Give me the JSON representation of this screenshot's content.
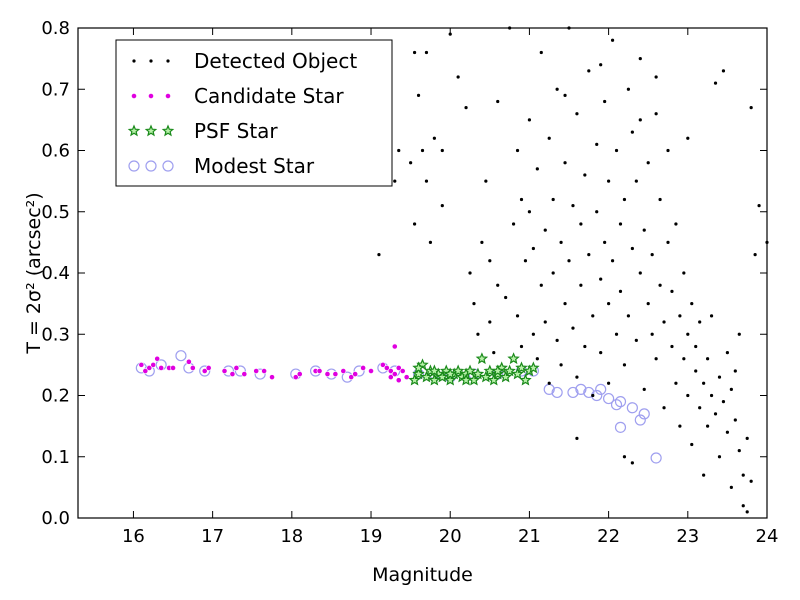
{
  "chart_data": {
    "type": "scatter",
    "xlabel": "Magnitude",
    "ylabel": "T = 2σ² (arcsec²)",
    "xlim": [
      15.3,
      24.0
    ],
    "ylim": [
      0.0,
      0.8
    ],
    "x_ticks": [
      16,
      17,
      18,
      19,
      20,
      21,
      22,
      23,
      24
    ],
    "y_ticks": [
      0.0,
      0.1,
      0.2,
      0.3,
      0.4,
      0.5,
      0.6,
      0.7,
      0.8
    ],
    "x_tick_labels": [
      "16",
      "17",
      "18",
      "19",
      "20",
      "21",
      "22",
      "23",
      "24"
    ],
    "y_tick_labels": [
      "0.0",
      "0.1",
      "0.2",
      "0.3",
      "0.4",
      "0.5",
      "0.6",
      "0.7",
      "0.8"
    ],
    "legend_placement": "top-left",
    "grid": false,
    "series": [
      {
        "name": "Detected Object",
        "marker": "dot",
        "color": "#000000",
        "points": [
          [
            19.1,
            0.43
          ],
          [
            19.3,
            0.55
          ],
          [
            19.35,
            0.6
          ],
          [
            19.5,
            0.58
          ],
          [
            19.55,
            0.48
          ],
          [
            19.65,
            0.6
          ],
          [
            19.7,
            0.55
          ],
          [
            19.75,
            0.45
          ],
          [
            19.8,
            0.62
          ],
          [
            19.9,
            0.51
          ],
          [
            19.55,
            0.76
          ],
          [
            19.6,
            0.69
          ],
          [
            19.7,
            0.76
          ],
          [
            20.0,
            0.79
          ],
          [
            19.9,
            0.6
          ],
          [
            20.1,
            0.72
          ],
          [
            20.2,
            0.67
          ],
          [
            20.25,
            0.4
          ],
          [
            20.3,
            0.35
          ],
          [
            20.35,
            0.3
          ],
          [
            20.4,
            0.45
          ],
          [
            20.45,
            0.55
          ],
          [
            20.5,
            0.32
          ],
          [
            20.55,
            0.27
          ],
          [
            20.5,
            0.42
          ],
          [
            20.6,
            0.38
          ],
          [
            20.6,
            0.68
          ],
          [
            20.7,
            0.36
          ],
          [
            20.75,
            0.8
          ],
          [
            20.8,
            0.48
          ],
          [
            20.85,
            0.33
          ],
          [
            20.85,
            0.6
          ],
          [
            20.9,
            0.28
          ],
          [
            20.9,
            0.52
          ],
          [
            20.95,
            0.42
          ],
          [
            21.0,
            0.5
          ],
          [
            21.0,
            0.65
          ],
          [
            21.05,
            0.3
          ],
          [
            21.05,
            0.44
          ],
          [
            21.1,
            0.57
          ],
          [
            21.1,
            0.26
          ],
          [
            21.15,
            0.38
          ],
          [
            21.15,
            0.76
          ],
          [
            21.2,
            0.47
          ],
          [
            21.2,
            0.32
          ],
          [
            21.25,
            0.62
          ],
          [
            21.25,
            0.22
          ],
          [
            21.3,
            0.52
          ],
          [
            21.3,
            0.4
          ],
          [
            21.35,
            0.29
          ],
          [
            21.35,
            0.7
          ],
          [
            21.4,
            0.45
          ],
          [
            21.4,
            0.25
          ],
          [
            21.45,
            0.58
          ],
          [
            21.45,
            0.35
          ],
          [
            21.5,
            0.8
          ],
          [
            21.5,
            0.42
          ],
          [
            21.55,
            0.31
          ],
          [
            21.55,
            0.51
          ],
          [
            21.6,
            0.23
          ],
          [
            21.6,
            0.66
          ],
          [
            21.65,
            0.38
          ],
          [
            21.65,
            0.48
          ],
          [
            21.7,
            0.28
          ],
          [
            21.7,
            0.56
          ],
          [
            21.75,
            0.43
          ],
          [
            21.75,
            0.73
          ],
          [
            21.8,
            0.33
          ],
          [
            21.8,
            0.2
          ],
          [
            21.85,
            0.5
          ],
          [
            21.85,
            0.61
          ],
          [
            21.9,
            0.39
          ],
          [
            21.9,
            0.27
          ],
          [
            21.95,
            0.45
          ],
          [
            21.95,
            0.68
          ],
          [
            22.0,
            0.35
          ],
          [
            22.0,
            0.55
          ],
          [
            22.0,
            0.22
          ],
          [
            22.05,
            0.42
          ],
          [
            22.05,
            0.78
          ],
          [
            22.1,
            0.3
          ],
          [
            22.1,
            0.6
          ],
          [
            22.15,
            0.48
          ],
          [
            22.15,
            0.37
          ],
          [
            22.2,
            0.25
          ],
          [
            22.2,
            0.52
          ],
          [
            22.25,
            0.7
          ],
          [
            22.25,
            0.33
          ],
          [
            22.3,
            0.44
          ],
          [
            22.3,
            0.63
          ],
          [
            22.35,
            0.29
          ],
          [
            22.35,
            0.55
          ],
          [
            22.4,
            0.4
          ],
          [
            22.4,
            0.75
          ],
          [
            22.45,
            0.21
          ],
          [
            22.45,
            0.47
          ],
          [
            22.5,
            0.35
          ],
          [
            22.5,
            0.58
          ],
          [
            22.55,
            0.3
          ],
          [
            22.55,
            0.43
          ],
          [
            22.6,
            0.66
          ],
          [
            22.6,
            0.26
          ],
          [
            22.65,
            0.38
          ],
          [
            22.65,
            0.52
          ],
          [
            22.7,
            0.32
          ],
          [
            22.7,
            0.18
          ],
          [
            22.75,
            0.45
          ],
          [
            22.75,
            0.6
          ],
          [
            22.8,
            0.28
          ],
          [
            22.8,
            0.37
          ],
          [
            22.85,
            0.22
          ],
          [
            22.85,
            0.48
          ],
          [
            22.9,
            0.33
          ],
          [
            22.9,
            0.15
          ],
          [
            22.95,
            0.4
          ],
          [
            22.95,
            0.26
          ],
          [
            23.0,
            0.3
          ],
          [
            23.0,
            0.2
          ],
          [
            23.05,
            0.35
          ],
          [
            23.05,
            0.12
          ],
          [
            23.1,
            0.28
          ],
          [
            23.1,
            0.24
          ],
          [
            23.15,
            0.18
          ],
          [
            23.15,
            0.32
          ],
          [
            23.2,
            0.22
          ],
          [
            23.2,
            0.07
          ],
          [
            23.25,
            0.26
          ],
          [
            23.25,
            0.15
          ],
          [
            23.3,
            0.2
          ],
          [
            23.3,
            0.33
          ],
          [
            23.35,
            0.17
          ],
          [
            23.35,
            0.71
          ],
          [
            23.4,
            0.23
          ],
          [
            23.4,
            0.1
          ],
          [
            23.45,
            0.73
          ],
          [
            23.45,
            0.19
          ],
          [
            23.5,
            0.27
          ],
          [
            23.5,
            0.14
          ],
          [
            23.55,
            0.21
          ],
          [
            23.55,
            0.05
          ],
          [
            23.6,
            0.24
          ],
          [
            23.6,
            0.16
          ],
          [
            23.65,
            0.11
          ],
          [
            23.65,
            0.3
          ],
          [
            23.7,
            0.07
          ],
          [
            23.7,
            0.02
          ],
          [
            23.75,
            0.13
          ],
          [
            23.75,
            0.01
          ],
          [
            23.8,
            0.06
          ],
          [
            23.8,
            0.67
          ],
          [
            23.85,
            0.43
          ],
          [
            23.9,
            0.51
          ],
          [
            24.0,
            0.45
          ],
          [
            21.45,
            0.69
          ],
          [
            21.9,
            0.74
          ],
          [
            22.4,
            0.65
          ],
          [
            22.6,
            0.72
          ],
          [
            23.0,
            0.62
          ],
          [
            21.6,
            0.13
          ],
          [
            22.3,
            0.09
          ],
          [
            22.2,
            0.1
          ]
        ]
      },
      {
        "name": "Candidate Star",
        "marker": "circle-filled-small",
        "color": "#e000e0",
        "points": [
          [
            16.1,
            0.25
          ],
          [
            16.15,
            0.24
          ],
          [
            16.2,
            0.245
          ],
          [
            16.25,
            0.25
          ],
          [
            16.3,
            0.26
          ],
          [
            16.35,
            0.245
          ],
          [
            16.45,
            0.245
          ],
          [
            16.5,
            0.245
          ],
          [
            16.7,
            0.255
          ],
          [
            16.75,
            0.245
          ],
          [
            16.9,
            0.24
          ],
          [
            16.95,
            0.245
          ],
          [
            17.15,
            0.24
          ],
          [
            17.25,
            0.235
          ],
          [
            17.3,
            0.245
          ],
          [
            17.4,
            0.235
          ],
          [
            17.55,
            0.24
          ],
          [
            17.65,
            0.24
          ],
          [
            17.75,
            0.23
          ],
          [
            18.05,
            0.23
          ],
          [
            18.1,
            0.235
          ],
          [
            18.3,
            0.24
          ],
          [
            18.35,
            0.24
          ],
          [
            18.45,
            0.235
          ],
          [
            18.55,
            0.235
          ],
          [
            18.65,
            0.24
          ],
          [
            18.75,
            0.23
          ],
          [
            18.8,
            0.235
          ],
          [
            18.9,
            0.245
          ],
          [
            19.0,
            0.24
          ],
          [
            19.15,
            0.25
          ],
          [
            19.2,
            0.245
          ],
          [
            19.25,
            0.24
          ],
          [
            19.3,
            0.235
          ],
          [
            19.35,
            0.245
          ],
          [
            19.4,
            0.24
          ],
          [
            19.45,
            0.23
          ],
          [
            19.3,
            0.28
          ],
          [
            19.25,
            0.23
          ],
          [
            19.35,
            0.225
          ]
        ]
      },
      {
        "name": "PSF Star",
        "marker": "star",
        "color": "#1a8a1a",
        "points": [
          [
            19.55,
            0.225
          ],
          [
            19.6,
            0.235
          ],
          [
            19.65,
            0.25
          ],
          [
            19.7,
            0.23
          ],
          [
            19.75,
            0.24
          ],
          [
            19.8,
            0.225
          ],
          [
            19.85,
            0.235
          ],
          [
            19.9,
            0.23
          ],
          [
            19.95,
            0.24
          ],
          [
            20.0,
            0.225
          ],
          [
            20.05,
            0.235
          ],
          [
            20.1,
            0.24
          ],
          [
            20.15,
            0.23
          ],
          [
            20.2,
            0.235
          ],
          [
            20.25,
            0.24
          ],
          [
            20.3,
            0.225
          ],
          [
            20.35,
            0.235
          ],
          [
            20.4,
            0.26
          ],
          [
            20.45,
            0.23
          ],
          [
            20.5,
            0.24
          ],
          [
            20.55,
            0.225
          ],
          [
            20.6,
            0.235
          ],
          [
            20.65,
            0.245
          ],
          [
            20.7,
            0.23
          ],
          [
            20.75,
            0.24
          ],
          [
            20.8,
            0.26
          ],
          [
            20.85,
            0.235
          ],
          [
            20.9,
            0.245
          ],
          [
            20.95,
            0.225
          ],
          [
            21.0,
            0.24
          ],
          [
            21.05,
            0.245
          ],
          [
            19.6,
            0.245
          ],
          [
            19.8,
            0.24
          ],
          [
            20.0,
            0.235
          ],
          [
            20.2,
            0.225
          ],
          [
            20.6,
            0.24
          ]
        ]
      },
      {
        "name": "Modest Star",
        "marker": "circle-open",
        "color": "#9f9fef",
        "points": [
          [
            16.1,
            0.245
          ],
          [
            16.2,
            0.24
          ],
          [
            16.35,
            0.25
          ],
          [
            16.6,
            0.265
          ],
          [
            16.7,
            0.245
          ],
          [
            16.9,
            0.24
          ],
          [
            17.2,
            0.24
          ],
          [
            17.35,
            0.24
          ],
          [
            17.6,
            0.235
          ],
          [
            18.05,
            0.235
          ],
          [
            18.3,
            0.24
          ],
          [
            18.5,
            0.235
          ],
          [
            18.7,
            0.23
          ],
          [
            18.85,
            0.24
          ],
          [
            19.15,
            0.245
          ],
          [
            19.3,
            0.24
          ],
          [
            19.6,
            0.235
          ],
          [
            19.8,
            0.235
          ],
          [
            20.0,
            0.23
          ],
          [
            20.3,
            0.235
          ],
          [
            20.6,
            0.235
          ],
          [
            20.9,
            0.24
          ],
          [
            21.05,
            0.24
          ],
          [
            21.25,
            0.21
          ],
          [
            21.35,
            0.205
          ],
          [
            21.55,
            0.205
          ],
          [
            21.65,
            0.21
          ],
          [
            21.75,
            0.205
          ],
          [
            21.85,
            0.2
          ],
          [
            21.9,
            0.21
          ],
          [
            22.1,
            0.185
          ],
          [
            22.15,
            0.19
          ],
          [
            22.3,
            0.18
          ],
          [
            22.4,
            0.16
          ],
          [
            22.45,
            0.17
          ],
          [
            22.15,
            0.148
          ],
          [
            22.6,
            0.098
          ],
          [
            22.0,
            0.195
          ]
        ]
      }
    ]
  }
}
